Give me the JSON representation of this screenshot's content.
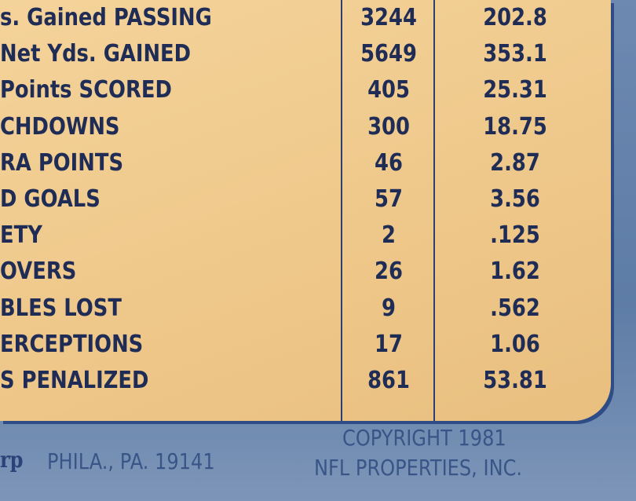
{
  "table": {
    "rows": [
      [
        "s. Gained PASSING",
        "3244",
        "202.8"
      ],
      [
        "Net Yds. GAINED",
        "5649",
        "353.1"
      ],
      [
        "Points SCORED",
        "405",
        "25.31"
      ],
      [
        "CHDOWNS",
        "300",
        "18.75"
      ],
      [
        "RA POINTS",
        "46",
        "2.87"
      ],
      [
        "D GOALS",
        "57",
        "3.56"
      ],
      [
        "ETY",
        "2",
        ".125"
      ],
      [
        "OVERS",
        "26",
        "1.62"
      ],
      [
        "BLES LOST",
        "9",
        ".562"
      ],
      [
        "ERCEPTIONS",
        "17",
        "1.06"
      ],
      [
        "S PENALIZED",
        "861",
        "53.81"
      ]
    ]
  },
  "footer": {
    "logo": "rp",
    "address": "PHILA., PA. 19141",
    "copyright_line1": "COPYRIGHT 1981",
    "copyright_line2": "NFL PROPERTIES, INC."
  }
}
